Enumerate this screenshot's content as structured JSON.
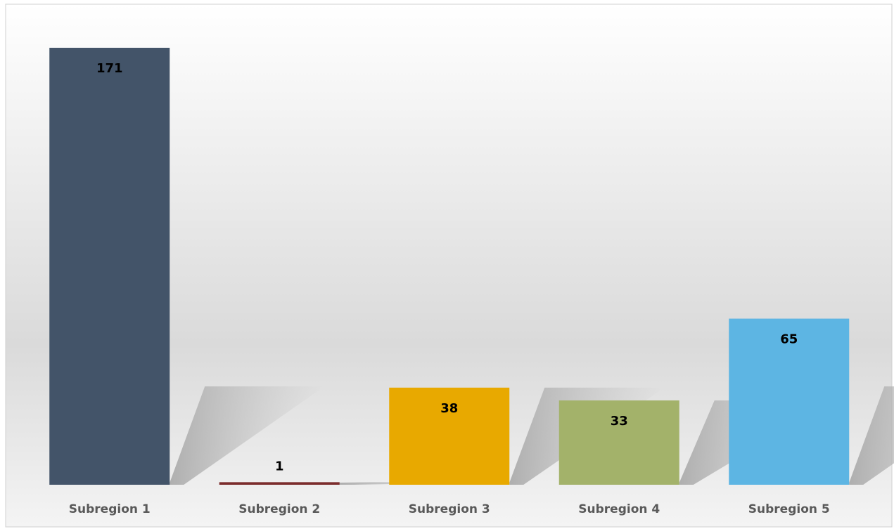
{
  "chart_data": {
    "type": "bar",
    "categories": [
      "Subregion 1",
      "Subregion 2",
      "Subregion 3",
      "Subregion 4",
      "Subregion 5"
    ],
    "values": [
      171,
      1,
      38,
      33,
      65
    ],
    "colors": [
      "#435469",
      "#7b2c2c",
      "#e8a900",
      "#a3b26a",
      "#5db5e3"
    ]
  }
}
